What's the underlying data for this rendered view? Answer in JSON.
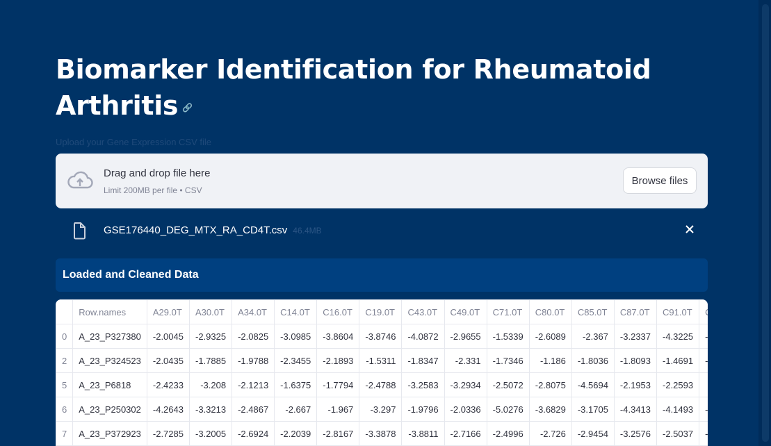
{
  "header": {
    "title": "Biomarker Identification for Rheumatoid Arthritis",
    "anchor": "🔗"
  },
  "uploader": {
    "label": "Upload your Gene Expression CSV file",
    "drop_text": "Drag and drop file here",
    "limit_text": "Limit 200MB per file • CSV",
    "browse_label": "Browse files"
  },
  "file": {
    "name": "GSE176440_DEG_MTX_RA_CD4T.csv",
    "size": "46.4MB"
  },
  "section": {
    "title": "Loaded and Cleaned Data"
  },
  "table": {
    "columns": [
      "",
      "Row.names",
      "A29.0T",
      "A30.0T",
      "A34.0T",
      "C14.0T",
      "C16.0T",
      "C19.0T",
      "C43.0T",
      "C49.0T",
      "C71.0T",
      "C80.0T",
      "C85.0T",
      "C87.0T",
      "C91.0T",
      "C"
    ],
    "rows": [
      [
        "0",
        "A_23_P327380",
        "-2.0045",
        "-2.9325",
        "-2.0825",
        "-3.0985",
        "-3.8604",
        "-3.8746",
        "-4.0872",
        "-2.9655",
        "-1.5339",
        "-2.6089",
        "-2.367",
        "-3.2337",
        "-4.3225",
        "-2"
      ],
      [
        "2",
        "A_23_P324523",
        "-2.0435",
        "-1.7885",
        "-1.9788",
        "-2.3455",
        "-2.1893",
        "-1.5311",
        "-1.8347",
        "-2.331",
        "-1.7346",
        "-1.186",
        "-1.8036",
        "-1.8093",
        "-1.4691",
        "-2"
      ],
      [
        "5",
        "A_23_P6818",
        "-2.4233",
        "-3.208",
        "-2.1213",
        "-1.6375",
        "-1.7794",
        "-2.4788",
        "-3.2583",
        "-3.2934",
        "-2.5072",
        "-2.8075",
        "-4.5694",
        "-2.1953",
        "-2.2593",
        "-"
      ],
      [
        "6",
        "A_23_P250302",
        "-4.2643",
        "-3.3213",
        "-2.4867",
        "-2.667",
        "-1.967",
        "-3.297",
        "-1.9796",
        "-2.0336",
        "-5.0276",
        "-3.6829",
        "-3.1705",
        "-4.3413",
        "-4.1493",
        "-3"
      ],
      [
        "7",
        "A_23_P372923",
        "-2.7285",
        "-3.2005",
        "-2.6924",
        "-2.2039",
        "-2.8167",
        "-3.3878",
        "-3.8811",
        "-2.7166",
        "-2.4996",
        "-2.726",
        "-2.9454",
        "-3.2576",
        "-2.5037",
        "-2"
      ]
    ]
  },
  "colors": {
    "background": "#003366",
    "section": "#004080",
    "dropzone": "#f0f2f6"
  }
}
